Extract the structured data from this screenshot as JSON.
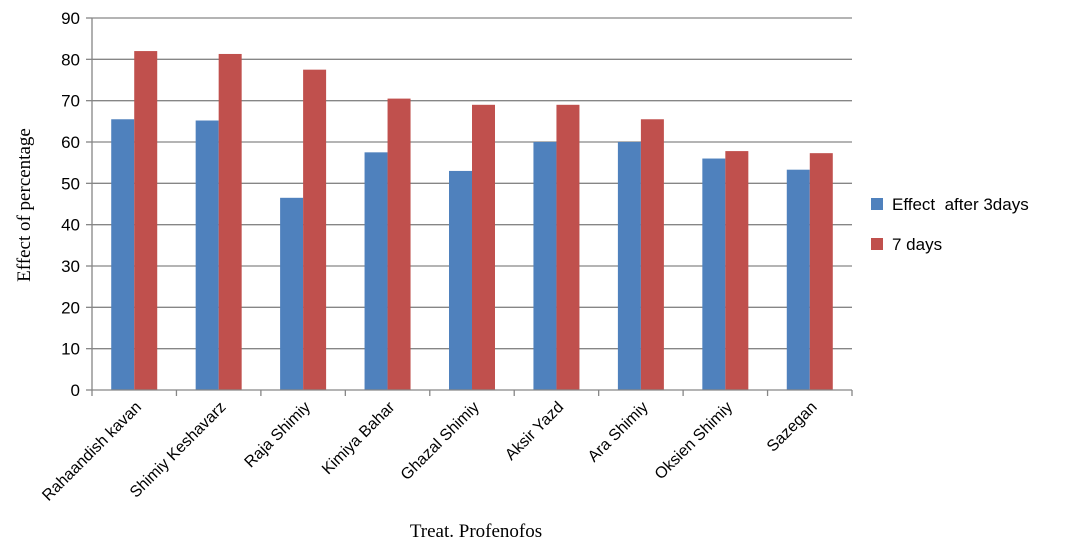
{
  "chart_data": {
    "type": "bar",
    "title": "",
    "xlabel": "Treat. Profenofos",
    "ylabel": "Effect of percentage",
    "ylim": [
      0,
      90
    ],
    "yticks": [
      0,
      10,
      20,
      30,
      40,
      50,
      60,
      70,
      80,
      90
    ],
    "grid": true,
    "legend_position": "right",
    "categories": [
      "Rahaandish kavan",
      "Shimiy Keshavarz",
      "Raja Shimiy",
      "Kimiya Bahar",
      "Ghazal Shimiy",
      "Aksir Yazd",
      "Ara Shimiy",
      "Oksien Shimiy",
      "Sazegan"
    ],
    "series": [
      {
        "name": "Effect  after 3days",
        "color": "#4F81BD",
        "values": [
          65.5,
          65.2,
          46.5,
          57.5,
          53.0,
          60.0,
          60.0,
          56.0,
          53.3
        ]
      },
      {
        "name": "7 days",
        "color": "#C0504D",
        "values": [
          82.0,
          81.3,
          77.5,
          70.5,
          69.0,
          69.0,
          65.5,
          57.8,
          57.3
        ]
      }
    ]
  }
}
